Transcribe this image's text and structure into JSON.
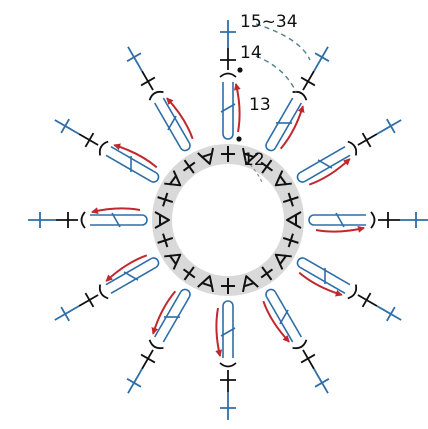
{
  "labels": {
    "rounds_15_34": "15~34",
    "round_14": "14",
    "round_13": "13",
    "round_12": "12"
  },
  "colors": {
    "background": "#ffffff",
    "ring": "#d9d9d9",
    "black_stitch": "#111111",
    "blue_stitch": "#2e6ea8",
    "red_arrow": "#c0282d",
    "dashed_guide": "#4f7f8a"
  },
  "symbols": [
    "chain-stitch-ring-icon",
    "single-crochet-cross-icon",
    "increase-v-icon",
    "double-crochet-icon",
    "direction-arrow-icon",
    "dashed-guide-line"
  ]
}
